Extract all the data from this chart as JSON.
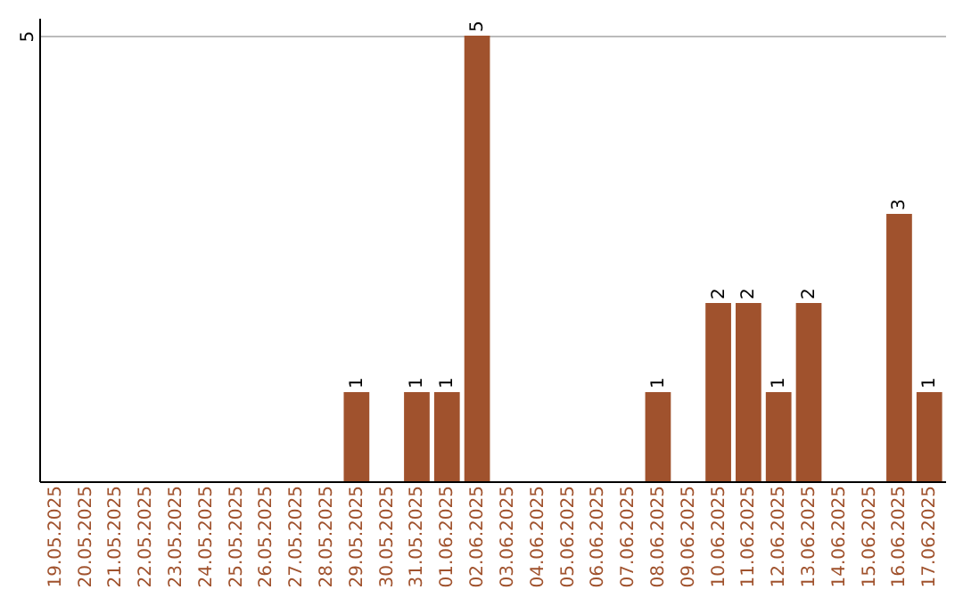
{
  "chart_data": {
    "type": "bar",
    "categories": [
      "19.05.2025",
      "20.05.2025",
      "21.05.2025",
      "22.05.2025",
      "23.05.2025",
      "24.05.2025",
      "25.05.2025",
      "26.05.2025",
      "27.05.2025",
      "28.05.2025",
      "29.05.2025",
      "30.05.2025",
      "31.05.2025",
      "01.06.2025",
      "02.06.2025",
      "03.06.2025",
      "04.06.2025",
      "05.06.2025",
      "06.06.2025",
      "07.06.2025",
      "08.06.2025",
      "09.06.2025",
      "10.06.2025",
      "11.06.2025",
      "12.06.2025",
      "13.06.2025",
      "14.06.2025",
      "15.06.2025",
      "16.06.2025",
      "17.06.2025"
    ],
    "values": [
      0,
      0,
      0,
      0,
      0,
      0,
      0,
      0,
      0,
      0,
      1,
      0,
      1,
      1,
      5,
      0,
      0,
      0,
      0,
      0,
      1,
      0,
      2,
      2,
      1,
      2,
      0,
      0,
      3,
      1
    ],
    "value_labels": [
      null,
      null,
      null,
      null,
      null,
      null,
      null,
      null,
      null,
      null,
      "1",
      null,
      "1",
      "1",
      "5",
      null,
      null,
      null,
      null,
      null,
      "1",
      null,
      "2",
      "2",
      "1",
      "2",
      null,
      null,
      "3",
      "1"
    ],
    "color": "#a0522d",
    "ylim": [
      0,
      5.2
    ],
    "yticks": [
      5
    ],
    "grid": "y"
  }
}
